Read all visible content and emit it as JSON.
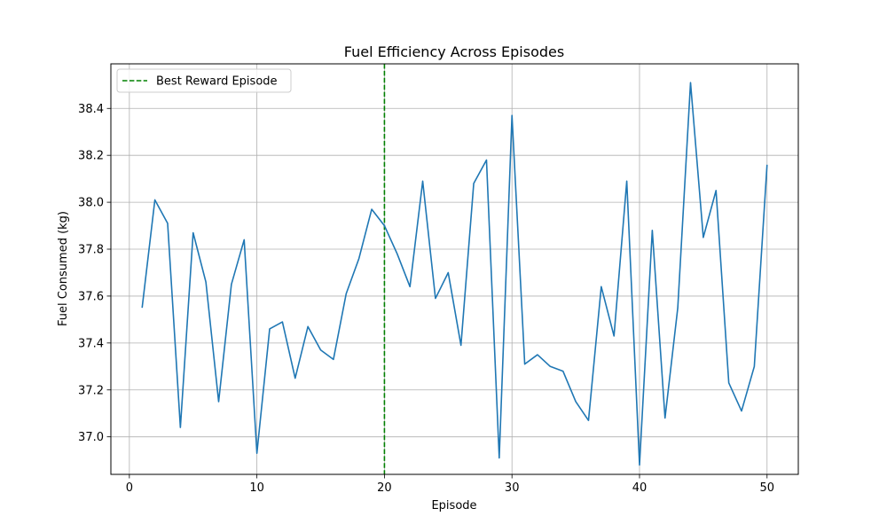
{
  "chart_data": {
    "type": "line",
    "title": "Fuel Efficiency Across Episodes",
    "xlabel": "Episode",
    "ylabel": "Fuel Consumed (kg)",
    "xlim": [
      -1.45,
      52.45
    ],
    "ylim": [
      36.84,
      38.59
    ],
    "xticks": [
      0,
      10,
      20,
      30,
      40,
      50
    ],
    "yticks": [
      37.0,
      37.2,
      37.4,
      37.6,
      37.8,
      38.0,
      38.2,
      38.4
    ],
    "ytick_labels": [
      "37.0",
      "37.2",
      "37.4",
      "37.6",
      "37.8",
      "38.0",
      "38.2",
      "38.4"
    ],
    "grid": true,
    "legend_position": "top-left",
    "series": [
      {
        "color": "#1f77b4",
        "x": [
          1,
          2,
          3,
          4,
          5,
          6,
          7,
          8,
          9,
          10,
          11,
          12,
          13,
          14,
          15,
          16,
          17,
          18,
          19,
          20,
          21,
          22,
          23,
          24,
          25,
          26,
          27,
          28,
          29,
          30,
          31,
          32,
          33,
          34,
          35,
          36,
          37,
          38,
          39,
          40,
          41,
          42,
          43,
          44,
          45,
          46,
          47,
          48,
          49,
          50
        ],
        "y": [
          37.55,
          38.01,
          37.91,
          37.04,
          37.87,
          37.66,
          37.15,
          37.65,
          37.84,
          36.93,
          37.46,
          37.49,
          37.25,
          37.47,
          37.37,
          37.33,
          37.61,
          37.76,
          37.97,
          37.9,
          37.78,
          37.64,
          38.09,
          37.59,
          37.7,
          37.39,
          38.08,
          38.18,
          36.91,
          38.37,
          37.31,
          37.35,
          37.3,
          37.28,
          37.15,
          37.07,
          37.64,
          37.43,
          38.09,
          36.88,
          37.88,
          37.08,
          37.55,
          38.51,
          37.85,
          38.05,
          37.23,
          37.11,
          37.3,
          38.16
        ]
      }
    ],
    "reference_lines": [
      {
        "name": "Best Reward Episode",
        "x": 20,
        "color": "#008000",
        "style": "dashed"
      }
    ]
  }
}
